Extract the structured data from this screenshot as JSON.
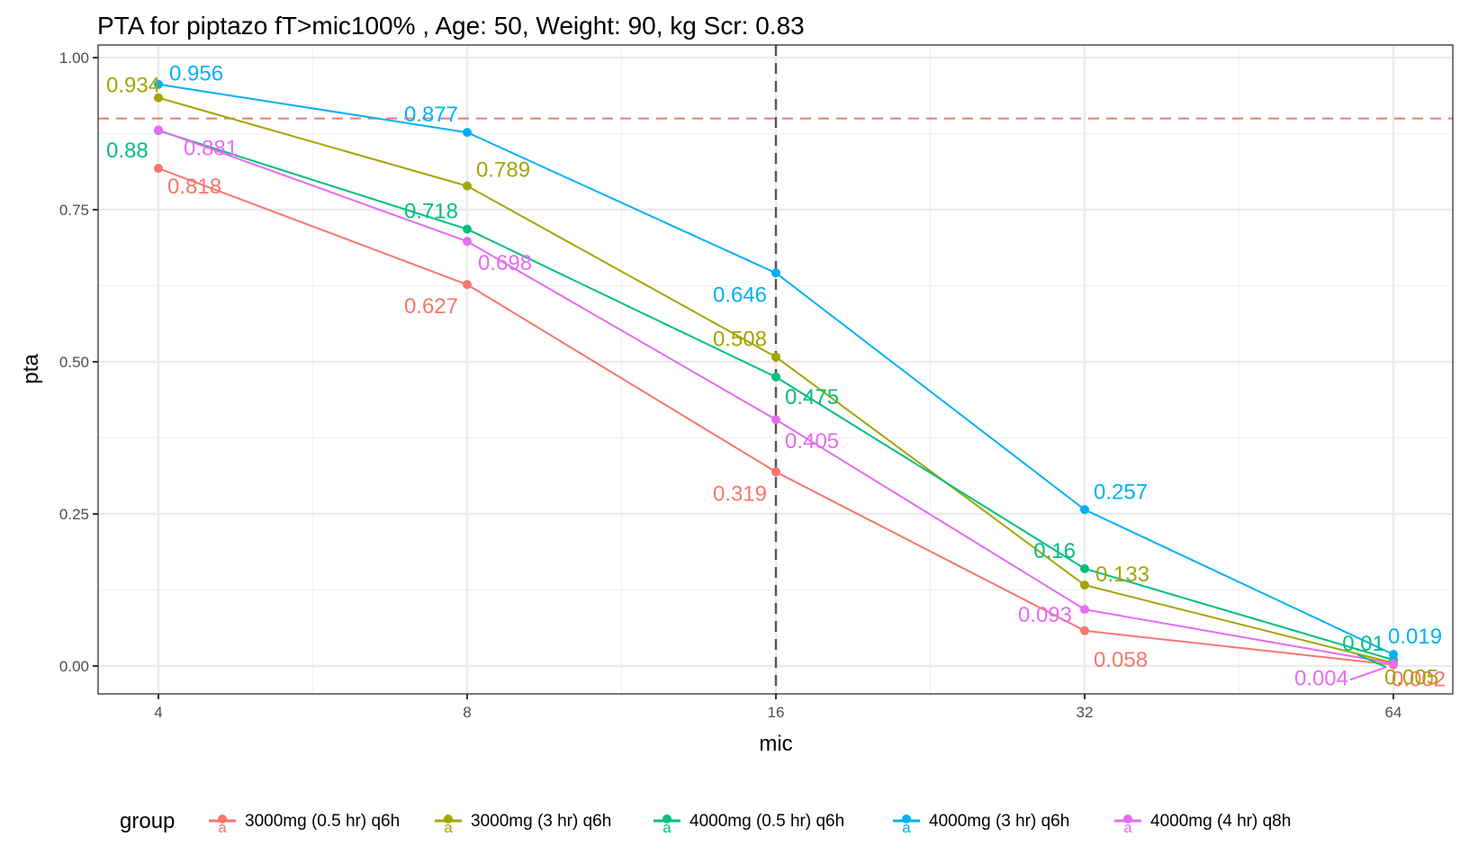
{
  "chart_data": {
    "type": "line",
    "title": "PTA for piptazo fT>mic100% , Age: 50, Weight: 90, kg Scr: 0.83",
    "xlabel": "mic",
    "ylabel": "pta",
    "x_scale": "log2",
    "x": [
      4,
      8,
      16,
      32,
      64
    ],
    "x_tick_labels": [
      "4",
      "8",
      "16",
      "32",
      "64"
    ],
    "ylim": [
      0,
      1
    ],
    "y_ticks": [
      0,
      0.25,
      0.5,
      0.75,
      1.0
    ],
    "y_tick_labels": [
      "0.00",
      "0.25",
      "0.50",
      "0.75",
      "1.00"
    ],
    "grid": true,
    "reference_lines": [
      {
        "orientation": "horizontal",
        "value": 0.9,
        "style": "dashed",
        "color": "#F8766D"
      },
      {
        "orientation": "vertical",
        "value": 16,
        "style": "dashed",
        "color": "#555555"
      }
    ],
    "legend": {
      "title": "group",
      "placement": "bottom"
    },
    "series": [
      {
        "name": "3000mg (0.5 hr) q6h",
        "color": "#F8766D",
        "values": [
          0.818,
          0.627,
          0.319,
          0.058,
          0.002
        ],
        "labels": [
          "0.818",
          "0.627",
          "0.319",
          "0.058",
          "0.002"
        ]
      },
      {
        "name": "3000mg (3 hr) q6h",
        "color": "#A3A500",
        "values": [
          0.934,
          0.789,
          0.508,
          0.133,
          0.005
        ],
        "labels": [
          "0.934",
          "0.789",
          "0.508",
          "0.133",
          "0.005"
        ]
      },
      {
        "name": "4000mg (0.5 hr) q6h",
        "color": "#00BF7D",
        "values": [
          0.88,
          0.718,
          0.475,
          0.16,
          0.01
        ],
        "labels": [
          "0.88",
          "0.718",
          "0.475",
          "0.16",
          "0.01"
        ]
      },
      {
        "name": "4000mg (3 hr) q6h",
        "color": "#00B0F6",
        "values": [
          0.956,
          0.877,
          0.646,
          0.257,
          0.019
        ],
        "labels": [
          "0.956",
          "0.877",
          "0.646",
          "0.257",
          "0.019"
        ]
      },
      {
        "name": "4000mg (4 hr) q8h",
        "color": "#E76BF3",
        "values": [
          0.881,
          0.698,
          0.405,
          0.093,
          0.004
        ],
        "labels": [
          "0.881",
          "0.698",
          "0.405",
          "0.093",
          "0.004"
        ]
      }
    ]
  }
}
